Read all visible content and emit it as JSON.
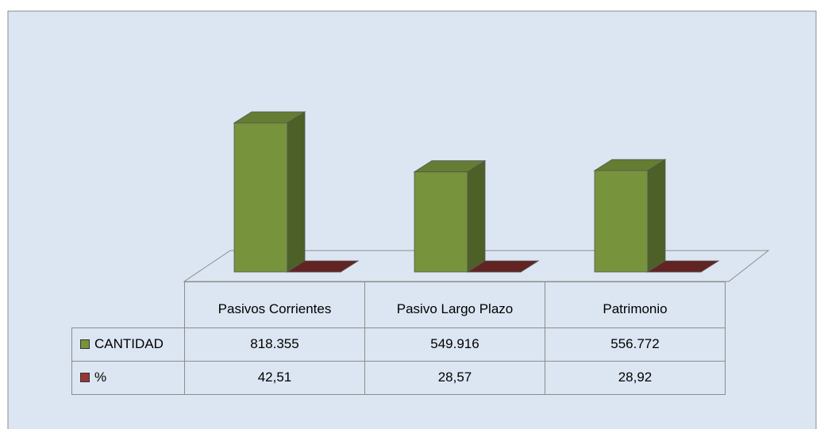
{
  "chart_data": {
    "type": "bar3d",
    "categories": [
      "Pasivos Corrientes",
      "Pasivo Largo Plazo",
      "Patrimonio"
    ],
    "series": [
      {
        "name": "CANTIDAD",
        "color": "#77933c",
        "values": [
          818355,
          549916,
          556772
        ],
        "value_labels": [
          "818.355",
          "549.916",
          "556.772"
        ]
      },
      {
        "name": "%",
        "color": "#953735",
        "values": [
          42.51,
          28.57,
          28.92
        ],
        "value_labels": [
          "42,51",
          "28,57",
          "28,92"
        ]
      }
    ]
  }
}
